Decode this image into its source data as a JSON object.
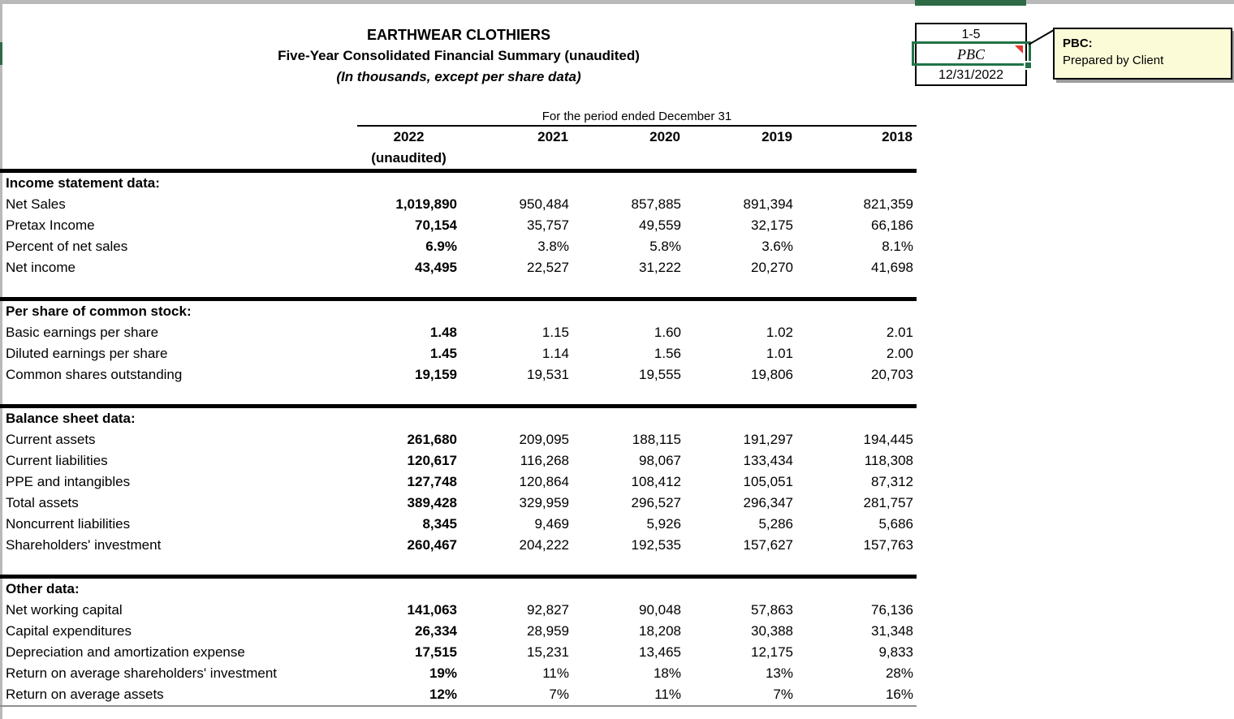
{
  "title": {
    "company": "EARTHWEAR CLOTHIERS",
    "subtitle": "Five-Year Consolidated Financial Summary (unaudited)",
    "units_note": "(In thousands, except per share data)"
  },
  "tickmark_box": {
    "reference": "1-5",
    "preparer_initials": "PBC",
    "date": "12/31/2022"
  },
  "comment": {
    "title": "PBC:",
    "body": "Prepared by Client"
  },
  "colors": {
    "excel_selection_green": "#217346",
    "comment_background": "#fbfbd8",
    "comment_indicator_red": "#e23b2e",
    "header_strip_gray": "#b9b9b9"
  },
  "table": {
    "period_header": "For the period ended December 31",
    "columns": [
      "2022",
      "2021",
      "2020",
      "2019",
      "2018"
    ],
    "unaudited_label": "(unaudited)",
    "sections": [
      {
        "header": "Income statement data:",
        "rows": [
          {
            "label": "Net Sales",
            "values": [
              "1,019,890",
              "950,484",
              "857,885",
              "891,394",
              "821,359"
            ]
          },
          {
            "label": "Pretax Income",
            "values": [
              "70,154",
              "35,757",
              "49,559",
              "32,175",
              "66,186"
            ]
          },
          {
            "label": "Percent of net sales",
            "values": [
              "6.9%",
              "3.8%",
              "5.8%",
              "3.6%",
              "8.1%"
            ]
          },
          {
            "label": "Net income",
            "values": [
              "43,495",
              "22,527",
              "31,222",
              "20,270",
              "41,698"
            ]
          }
        ]
      },
      {
        "header": "Per share of common stock:",
        "rows": [
          {
            "label": "Basic earnings per share",
            "values": [
              "1.48",
              "1.15",
              "1.60",
              "1.02",
              "2.01"
            ]
          },
          {
            "label": "Diluted earnings per share",
            "values": [
              "1.45",
              "1.14",
              "1.56",
              "1.01",
              "2.00"
            ]
          },
          {
            "label": "Common shares outstanding",
            "values": [
              "19,159",
              "19,531",
              "19,555",
              "19,806",
              "20,703"
            ]
          }
        ]
      },
      {
        "header": "Balance sheet data:",
        "rows": [
          {
            "label": "Current assets",
            "values": [
              "261,680",
              "209,095",
              "188,115",
              "191,297",
              "194,445"
            ]
          },
          {
            "label": "Current liabilities",
            "values": [
              "120,617",
              "116,268",
              "98,067",
              "133,434",
              "118,308"
            ]
          },
          {
            "label": "PPE and intangibles",
            "values": [
              "127,748",
              "120,864",
              "108,412",
              "105,051",
              "87,312"
            ]
          },
          {
            "label": "Total assets",
            "values": [
              "389,428",
              "329,959",
              "296,527",
              "296,347",
              "281,757"
            ]
          },
          {
            "label": "Noncurrent liabilities",
            "values": [
              "8,345",
              "9,469",
              "5,926",
              "5,286",
              "5,686"
            ]
          },
          {
            "label": "Shareholders' investment",
            "values": [
              "260,467",
              "204,222",
              "192,535",
              "157,627",
              "157,763"
            ]
          }
        ]
      },
      {
        "header": "Other data:",
        "rows": [
          {
            "label": "Net working capital",
            "values": [
              "141,063",
              "92,827",
              "90,048",
              "57,863",
              "76,136"
            ]
          },
          {
            "label": "Capital expenditures",
            "values": [
              "26,334",
              "28,959",
              "18,208",
              "30,388",
              "31,348"
            ]
          },
          {
            "label": "Depreciation and amortization expense",
            "values": [
              "17,515",
              "15,231",
              "13,465",
              "12,175",
              "9,833"
            ]
          },
          {
            "label": "Return on average shareholders' investment",
            "values": [
              "19%",
              "11%",
              "18%",
              "13%",
              "28%"
            ]
          },
          {
            "label": "Return on average assets",
            "values": [
              "12%",
              "7%",
              "11%",
              "7%",
              "16%"
            ]
          }
        ]
      }
    ]
  }
}
